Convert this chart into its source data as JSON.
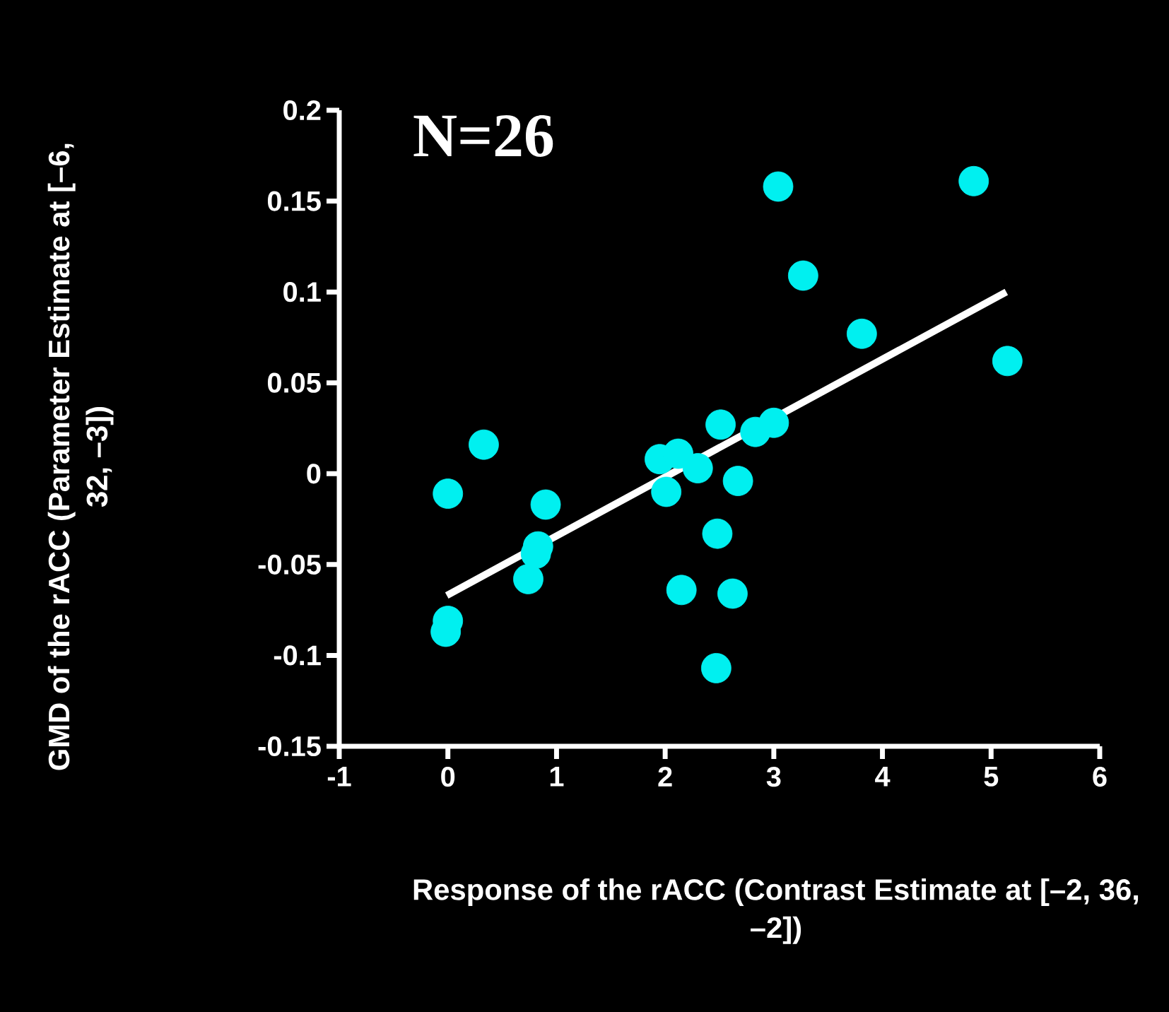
{
  "chart_data": {
    "type": "scatter",
    "xlabel": "Response of the rACC (Contrast Estimate at [–2, 36, –2])",
    "ylabel": "GMD of the rACC (Parameter Estimate at [–6, 32, –3])",
    "annotations": [
      "N=26"
    ],
    "xlim": [
      -1,
      6
    ],
    "ylim": [
      -0.15,
      0.2
    ],
    "xticks": [
      -1,
      0,
      1,
      2,
      3,
      4,
      5,
      6
    ],
    "yticks": [
      -0.15,
      -0.1,
      -0.05,
      0,
      0.05,
      0.1,
      0.15,
      0.2
    ],
    "grid": false,
    "marker": "circle",
    "series": [
      {
        "color": "#00f0f0",
        "x": [
          3.04,
          4.84,
          3.27,
          3.81,
          5.15,
          0.33,
          0.0,
          0.9,
          0.83,
          0.81,
          0.74,
          0.0,
          -0.02,
          1.95,
          2.12,
          2.3,
          2.01,
          2.51,
          2.83,
          3.0,
          2.67,
          2.48,
          2.15,
          2.62,
          2.47
        ],
        "values": [
          0.158,
          0.161,
          0.109,
          0.077,
          0.062,
          0.016,
          -0.011,
          -0.017,
          -0.04,
          -0.044,
          -0.058,
          -0.081,
          -0.087,
          0.008,
          0.011,
          0.003,
          -0.01,
          0.027,
          0.023,
          0.028,
          -0.004,
          -0.033,
          -0.064,
          -0.066,
          -0.107
        ]
      },
      {
        "type": "line",
        "marker": "none",
        "color": "#ffffff",
        "x": [
          -0.01,
          5.14
        ],
        "values": [
          -0.067,
          0.1
        ]
      }
    ]
  }
}
